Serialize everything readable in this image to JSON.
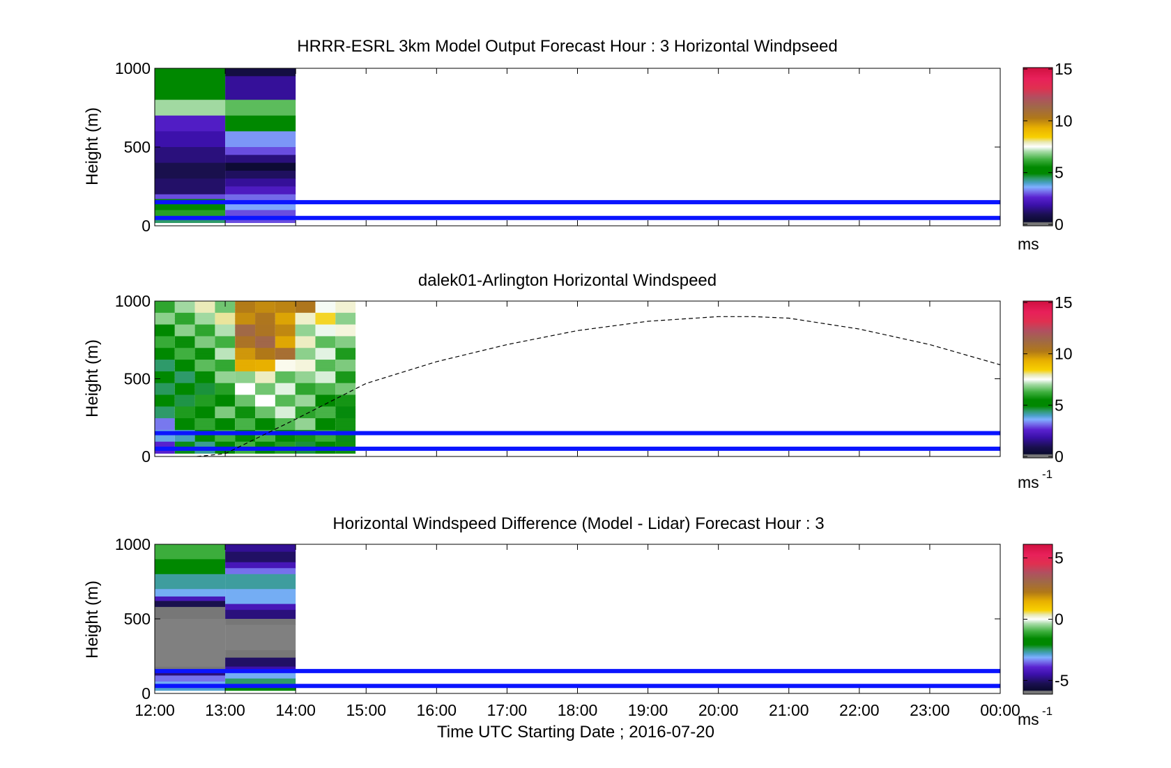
{
  "figure": {
    "xlabel": "Time UTC  Starting Date ; 2016-07-20",
    "x_ticks": [
      "12:00",
      "13:00",
      "14:00",
      "15:00",
      "16:00",
      "17:00",
      "18:00",
      "19:00",
      "20:00",
      "21:00",
      "22:00",
      "23:00",
      "00:00"
    ]
  },
  "chart_data": [
    {
      "type": "heatmap",
      "title": "HRRR-ESRL 3km Model Output   Forecast Hour : 3 Horizontal Windpseed",
      "ylabel": "Height (m)",
      "y_ticks": [
        "0",
        "500",
        "1000"
      ],
      "xlim_hours": [
        12,
        24
      ],
      "ylim": [
        0,
        1000
      ],
      "colorbar": {
        "label": "ms",
        "label_sup": "",
        "ticks": [
          0,
          5,
          10,
          15
        ],
        "tick_labels": [
          "0",
          "5",
          "10",
          "15"
        ],
        "range": [
          0,
          15
        ]
      },
      "reference_lines_m": [
        150,
        50
      ],
      "reference_line_color": "#0a14ff",
      "data_columns": [
        {
          "t0": 12.0,
          "t1": 13.0,
          "cells": [
            [
              1000,
              900,
              5.5
            ],
            [
              900,
              800,
              5.0
            ],
            [
              800,
              700,
              7.0
            ],
            [
              700,
              600,
              2.5
            ],
            [
              600,
              500,
              2.0
            ],
            [
              500,
              400,
              1.5
            ],
            [
              400,
              300,
              1.0
            ],
            [
              300,
              200,
              1.3
            ],
            [
              200,
              170,
              3.0
            ],
            [
              170,
              140,
              5.5
            ],
            [
              140,
              100,
              5.0
            ],
            [
              100,
              60,
              6.0
            ],
            [
              60,
              20,
              4.5
            ]
          ]
        },
        {
          "t0": 13.0,
          "t1": 14.0,
          "cells": [
            [
              1000,
              950,
              0.8
            ],
            [
              950,
              800,
              1.8
            ],
            [
              800,
              700,
              6.5
            ],
            [
              700,
              600,
              5.0
            ],
            [
              600,
              500,
              3.5
            ],
            [
              500,
              450,
              3.0
            ],
            [
              450,
              400,
              1.5
            ],
            [
              400,
              350,
              0.5
            ],
            [
              350,
              300,
              1.2
            ],
            [
              300,
              250,
              1.8
            ],
            [
              250,
              200,
              2.4
            ],
            [
              200,
              150,
              3.2
            ],
            [
              150,
              100,
              3.6
            ],
            [
              100,
              20,
              3.0
            ]
          ]
        }
      ]
    },
    {
      "type": "heatmap",
      "title": "dalek01-Arlington  Horizontal Windspeed",
      "ylabel": "Height (m)",
      "y_ticks": [
        "0",
        "500",
        "1000"
      ],
      "xlim_hours": [
        12,
        24
      ],
      "ylim": [
        0,
        1000
      ],
      "colorbar": {
        "label": "ms",
        "label_sup": "-1",
        "ticks": [
          0,
          5,
          10,
          15
        ],
        "tick_labels": [
          "0",
          "5",
          "10",
          "15"
        ],
        "range": [
          0,
          15
        ]
      },
      "reference_lines_m": [
        150,
        50
      ],
      "reference_line_color": "#0a14ff",
      "data_extent_hours": [
        12.0,
        14.85
      ],
      "bin_minutes": 15,
      "band_values": [
        [
          6.8,
          6.5,
          5.8,
          5.5,
          5.4,
          5.2,
          5.0,
          4.9,
          4.8,
          4.5,
          4.0,
          3.5,
          3.0
        ],
        [
          7.0,
          6.8,
          6.5,
          6.0,
          5.6,
          5.4,
          5.2,
          5.0,
          5.0,
          5.2,
          5.0,
          4.8,
          4.5
        ],
        [
          7.2,
          7.0,
          6.8,
          6.4,
          6.0,
          5.8,
          5.6,
          5.4,
          5.6,
          5.8,
          5.4,
          5.2,
          5.0
        ],
        [
          7.0,
          7.3,
          7.1,
          7.0,
          6.8,
          6.5,
          6.2,
          6.0,
          6.2,
          6.4,
          5.8,
          5.6,
          5.5
        ],
        [
          9.8,
          10.2,
          10.5,
          10.5,
          10.4,
          9.0,
          7.2,
          6.8,
          6.6,
          6.4,
          6.0,
          5.8,
          5.6
        ],
        [
          10.6,
          10.0,
          10.8,
          10.6,
          10.2,
          10.0,
          7.5,
          7.0,
          6.8,
          6.6,
          6.2,
          6.0,
          5.8
        ],
        [
          10.0,
          10.2,
          9.6,
          9.8,
          10.1,
          7.6,
          7.2,
          7.0,
          6.8,
          6.6,
          6.4,
          6.0,
          5.6
        ],
        [
          9.6,
          7.8,
          7.6,
          7.5,
          7.2,
          7.0,
          6.9,
          6.8,
          6.6,
          6.4,
          6.2,
          5.8,
          5.4
        ],
        [
          7.8,
          7.6,
          7.4,
          7.2,
          7.0,
          6.8,
          6.6,
          6.4,
          6.2,
          6.0,
          5.8,
          5.5,
          5.2
        ],
        [
          7.4,
          7.2,
          7.0,
          6.8,
          6.6,
          6.4,
          6.2,
          6.0,
          5.8,
          5.6,
          5.4,
          5.2,
          5.0
        ]
      ],
      "daytime_curve": {
        "description_hours_m": [
          [
            12.6,
            0
          ],
          [
            13.0,
            18
          ],
          [
            14.0,
            240
          ],
          [
            15.0,
            470
          ],
          [
            16.0,
            610
          ],
          [
            17.0,
            720
          ],
          [
            18.0,
            810
          ],
          [
            19.0,
            870
          ],
          [
            20.0,
            900
          ],
          [
            20.5,
            900
          ],
          [
            21.0,
            890
          ],
          [
            22.0,
            820
          ],
          [
            23.0,
            720
          ],
          [
            24.0,
            590
          ]
        ],
        "style": "dashed"
      }
    },
    {
      "type": "heatmap",
      "title": "Horizontal Windspeed Difference (Model - Lidar) Forecast Hour : 3",
      "ylabel": "Height (m)",
      "y_ticks": [
        "0",
        "500",
        "1000"
      ],
      "xlim_hours": [
        12,
        24
      ],
      "ylim": [
        0,
        1000
      ],
      "colorbar": {
        "label": "ms",
        "label_sup": "-1",
        "ticks": [
          -5,
          0,
          5
        ],
        "tick_labels": [
          "-5",
          "0",
          "5"
        ],
        "range": [
          -6,
          6
        ]
      },
      "reference_lines_m": [
        150,
        50
      ],
      "reference_line_color": "#0a14ff",
      "data_columns": [
        {
          "t0": 12.0,
          "t1": 13.0,
          "cells": [
            [
              1000,
              900,
              -1.0
            ],
            [
              900,
              800,
              -1.8
            ],
            [
              800,
              700,
              -2.6
            ],
            [
              700,
              650,
              -3.0
            ],
            [
              650,
              620,
              -4.2
            ],
            [
              620,
              580,
              -5.2
            ],
            [
              580,
              500,
              -5.8
            ],
            [
              500,
              180,
              "gray"
            ],
            [
              180,
              150,
              -5.8
            ],
            [
              150,
              120,
              -4.8
            ],
            [
              120,
              80,
              -3.4
            ],
            [
              80,
              40,
              -3.0
            ],
            [
              40,
              20,
              -2.8
            ]
          ]
        },
        {
          "t0": 13.0,
          "t1": 14.0,
          "cells": [
            [
              1000,
              950,
              -4.6
            ],
            [
              950,
              880,
              -5.0
            ],
            [
              880,
              840,
              -4.2
            ],
            [
              840,
              800,
              -3.4
            ],
            [
              800,
              700,
              -2.6
            ],
            [
              700,
              600,
              -3.0
            ],
            [
              600,
              560,
              -4.2
            ],
            [
              560,
              500,
              -4.8
            ],
            [
              500,
              460,
              -5.8
            ],
            [
              460,
              290,
              "gray"
            ],
            [
              290,
              240,
              -5.8
            ],
            [
              240,
              180,
              -5.0
            ],
            [
              180,
              150,
              -4.4
            ],
            [
              150,
              100,
              -3.0
            ],
            [
              100,
              60,
              -2.4
            ],
            [
              60,
              20,
              -1.6
            ]
          ]
        }
      ]
    }
  ]
}
